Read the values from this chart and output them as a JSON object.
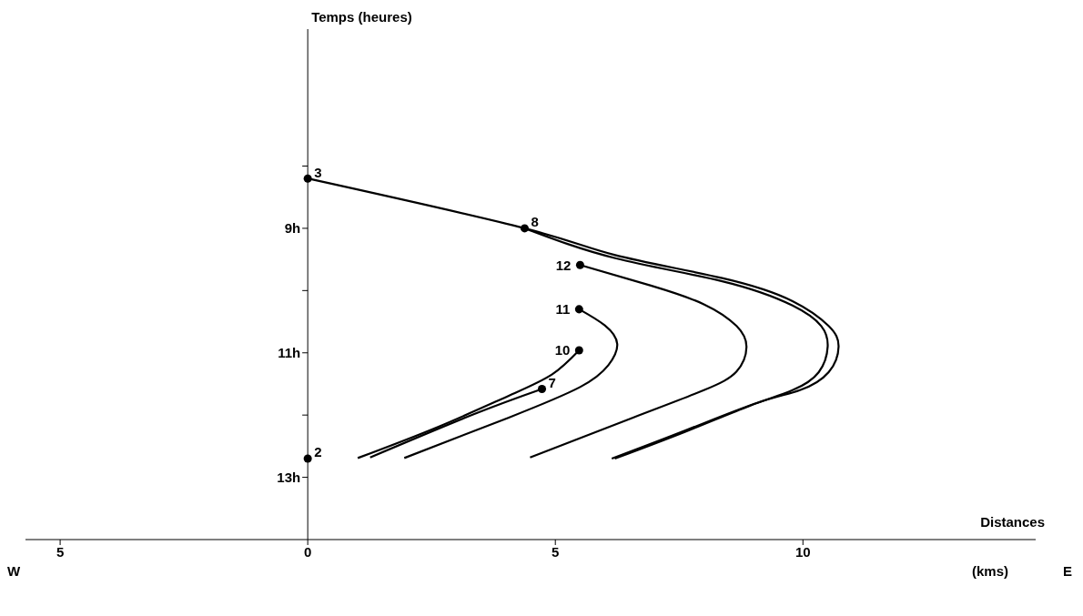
{
  "chart_data": {
    "type": "line",
    "xlabel": "Distances",
    "ylabel": "Temps (heures)",
    "xlim": [
      -5.7,
      14.7
    ],
    "ylim": [
      14,
      5.8
    ],
    "xticks": [
      {
        "value": -5,
        "label": "5"
      },
      0,
      5,
      10
    ],
    "yticks": [
      {
        "value": 8,
        "label": null
      },
      {
        "value": 9,
        "label": "9h"
      },
      {
        "value": 10,
        "label": null
      },
      {
        "value": 11,
        "label": "11h"
      },
      {
        "value": 12,
        "label": null
      },
      {
        "value": 13,
        "label": "13h"
      }
    ],
    "series": [
      {
        "color": "#000000",
        "x": [
          0,
          4.38,
          6.21,
          8.37,
          9.79,
          10.52,
          10.72,
          10.52,
          9.94,
          9.09,
          7.65,
          6.14
        ],
        "values": [
          8.2,
          9.0,
          9.43,
          9.8,
          10.17,
          10.57,
          10.9,
          11.31,
          11.6,
          11.8,
          12.24,
          12.7
        ]
      },
      {
        "color": "#000000",
        "x": [
          4.38,
          6.21,
          8.37,
          9.79,
          10.37,
          10.5,
          10.32,
          9.79,
          8.93,
          7.65,
          6.2
        ],
        "values": [
          9.0,
          9.48,
          9.85,
          10.24,
          10.57,
          10.9,
          11.31,
          11.6,
          11.85,
          12.26,
          12.7
        ]
      },
      {
        "color": "#000000",
        "x": [
          5.5,
          6.93,
          8.0,
          8.66,
          8.86,
          8.66,
          8.0,
          6.57,
          4.49
        ],
        "values": [
          9.59,
          9.92,
          10.22,
          10.57,
          10.91,
          11.3,
          11.6,
          12.04,
          12.68
        ]
      },
      {
        "color": "#000000",
        "x": [
          5.48,
          6.0,
          6.25,
          6.07,
          5.5,
          4.06,
          1.95
        ],
        "values": [
          10.3,
          10.56,
          10.86,
          11.2,
          11.55,
          12.04,
          12.69
        ]
      },
      {
        "color": "#000000",
        "x": [
          5.48,
          4.93,
          4.06,
          2.63,
          1.01
        ],
        "values": [
          10.96,
          11.35,
          11.69,
          12.19,
          12.69
        ]
      },
      {
        "color": "#000000",
        "x": [
          4.73,
          3.34,
          1.26
        ],
        "values": [
          11.58,
          11.99,
          12.68
        ]
      },
      {
        "type": "scatter",
        "marker": "circle",
        "color": "#000000",
        "x": [
          0,
          4.38,
          5.5,
          5.48,
          5.48,
          4.73,
          0
        ],
        "values": [
          8.2,
          9.0,
          9.59,
          10.3,
          10.96,
          11.58,
          12.7
        ]
      }
    ],
    "annotations": [
      "W",
      "(kms)",
      "E",
      {
        "text": "3",
        "x": 0,
        "y": 8.2
      },
      {
        "text": "8",
        "x": 4.38,
        "y": 9.0
      },
      {
        "text": "12",
        "x": 5.5,
        "y": 9.59
      },
      {
        "text": "11",
        "x": 5.48,
        "y": 10.3
      },
      {
        "text": "10",
        "x": 5.48,
        "y": 10.96
      },
      {
        "text": "7",
        "x": 4.73,
        "y": 11.58
      },
      {
        "text": "2",
        "x": 0,
        "y": 12.7
      }
    ]
  }
}
